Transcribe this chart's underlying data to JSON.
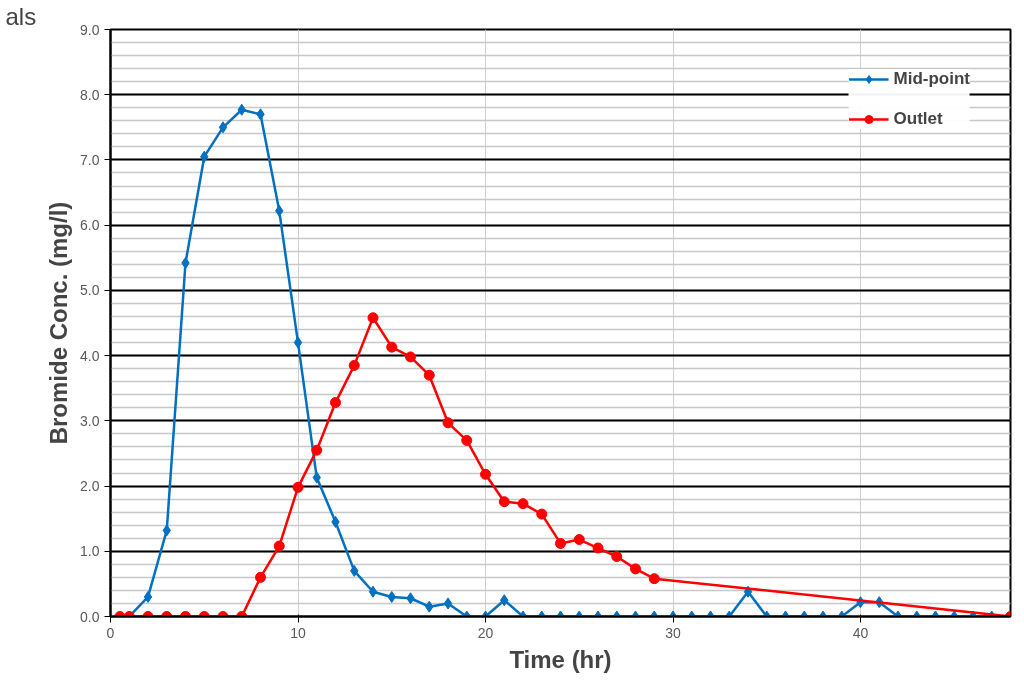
{
  "chart_data": {
    "type": "line",
    "xlabel": "Time (hr)",
    "ylabel": "Bromide Conc. (mg/l)",
    "annotations": [
      "als"
    ],
    "xlim": [
      0,
      48
    ],
    "xticks": [
      0,
      10,
      20,
      30,
      40
    ],
    "ylim": [
      0,
      9
    ],
    "yticks": [
      {
        "value": 0,
        "label": "0.0"
      },
      {
        "value": 1,
        "label": "1.0"
      },
      {
        "value": 2,
        "label": "2.0"
      },
      {
        "value": 3,
        "label": "3.0"
      },
      {
        "value": 4,
        "label": "4.0"
      },
      {
        "value": 5,
        "label": "5.0"
      },
      {
        "value": 6,
        "label": "6.0"
      },
      {
        "value": 7,
        "label": "7.0"
      },
      {
        "value": 8,
        "label": "8.0"
      },
      {
        "value": 9,
        "label": "9.0"
      }
    ],
    "grid": true,
    "legend": "top right",
    "line_style": "solid",
    "series": [
      {
        "name": "Mid-point",
        "color": "#0070c0",
        "marker": "diamond",
        "x": [
          1,
          2,
          3,
          4,
          5,
          6,
          7,
          8,
          9,
          10,
          11,
          12,
          13,
          14,
          15,
          16,
          17,
          18,
          19,
          20,
          21,
          22,
          23,
          24,
          25,
          26,
          27,
          28,
          29,
          30,
          31,
          32,
          33,
          34,
          35,
          36,
          37,
          38,
          39,
          40,
          41,
          42,
          43,
          44,
          45,
          46,
          47
        ],
        "values": [
          0,
          0.3,
          1.32,
          5.42,
          7.05,
          7.5,
          7.77,
          7.7,
          6.22,
          4.2,
          2.13,
          1.45,
          0.7,
          0.38,
          0.3,
          0.28,
          0.15,
          0.2,
          0,
          0,
          0.25,
          0,
          0,
          0,
          0,
          0,
          0,
          0,
          0,
          0,
          0,
          0,
          0,
          0.38,
          0,
          0,
          0,
          0,
          0,
          0.22,
          0.22,
          0,
          0,
          0,
          0,
          0,
          0
        ]
      },
      {
        "name": "Outlet",
        "color": "#ff0000",
        "marker": "circle",
        "x": [
          0.5,
          1,
          2,
          3,
          4,
          5,
          6,
          7,
          8,
          9,
          10,
          11,
          12,
          13,
          14,
          15,
          16,
          17,
          18,
          19,
          20,
          21,
          22,
          23,
          24,
          25,
          26,
          27,
          28,
          29,
          48
        ],
        "values": [
          0,
          0,
          0,
          0,
          0,
          0,
          0,
          0,
          0.6,
          1.08,
          1.98,
          2.55,
          3.28,
          3.85,
          4.58,
          4.13,
          3.98,
          3.7,
          2.97,
          2.7,
          2.18,
          1.76,
          1.73,
          1.57,
          1.12,
          1.18,
          1.05,
          0.92,
          0.73,
          0.58,
          0
        ]
      }
    ]
  }
}
